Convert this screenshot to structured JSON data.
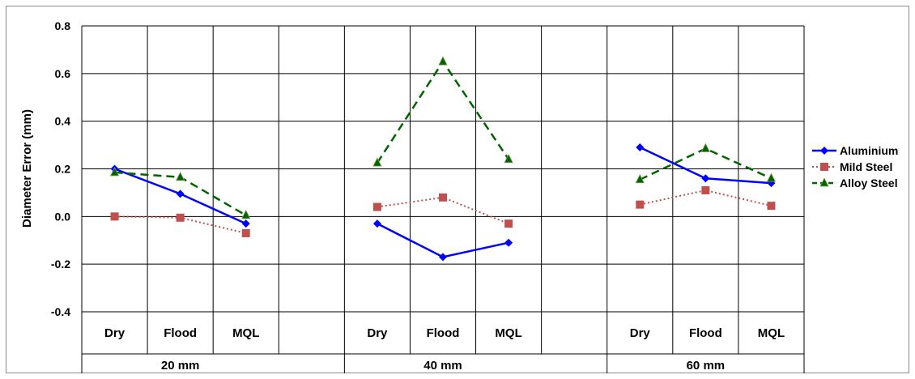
{
  "chart_data": {
    "type": "line",
    "ylabel": "Diameter Error (mm)",
    "ylim": [
      -0.4,
      0.8
    ],
    "yticks": [
      "-0.4",
      "-0.2",
      "0.0",
      "0.2",
      "0.4",
      "0.6",
      "0.8"
    ],
    "grid": true,
    "legend_position": "right",
    "groups": [
      {
        "label": "20 mm",
        "conditions": [
          "Dry",
          "Flood",
          "MQL",
          ""
        ]
      },
      {
        "label": "40 mm",
        "conditions": [
          "Dry",
          "Flood",
          "MQL",
          ""
        ]
      },
      {
        "label": "60 mm",
        "conditions": [
          "Dry",
          "Flood",
          "MQL"
        ]
      }
    ],
    "series": [
      {
        "name": "Aluminium",
        "color": "#0000ff",
        "line": "solid",
        "marker": "diamond",
        "segments": [
          [
            0.2,
            0.095,
            -0.03
          ],
          [
            -0.03,
            -0.17,
            -0.11
          ],
          [
            0.29,
            0.16,
            0.14
          ]
        ]
      },
      {
        "name": "Mild Steel",
        "color": "#c0504d",
        "line": "dotted",
        "marker": "square",
        "segments": [
          [
            0.0,
            -0.005,
            -0.07
          ],
          [
            0.04,
            0.08,
            -0.03
          ],
          [
            0.05,
            0.11,
            0.045
          ]
        ]
      },
      {
        "name": "Alloy Steel",
        "color": "#006400",
        "line": "dashed",
        "marker": "triangle",
        "segments": [
          [
            0.185,
            0.165,
            0.005
          ],
          [
            0.225,
            0.65,
            0.24
          ],
          [
            0.155,
            0.285,
            0.16
          ]
        ]
      }
    ]
  }
}
